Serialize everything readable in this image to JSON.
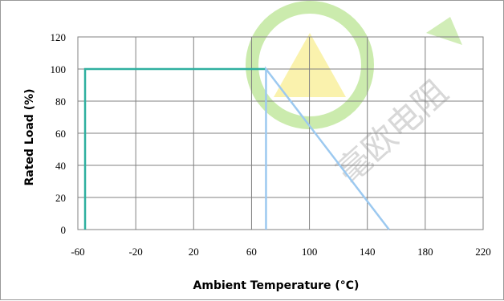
{
  "chart_data": {
    "type": "line",
    "xlabel": "Ambient Temperature (°C)",
    "ylabel": "Rated Load (%)",
    "xlim": [
      -60,
      220
    ],
    "ylim": [
      0,
      120
    ],
    "x_ticks": [
      -60,
      -20,
      20,
      60,
      100,
      140,
      180,
      220
    ],
    "y_ticks": [
      0,
      20,
      40,
      60,
      80,
      100,
      120
    ],
    "grid": true,
    "series": [
      {
        "color": "#2fb0a0",
        "x": [
          -55,
          -55,
          70
        ],
        "y": [
          0,
          100,
          100
        ]
      },
      {
        "color": "#9cc9f0",
        "x": [
          70,
          70,
          155
        ],
        "y": [
          0,
          100,
          0
        ]
      }
    ],
    "colors": {
      "grid": "#808080",
      "watermark_green": "#8cd24a",
      "watermark_yellow": "#f3e34a",
      "watermark_text": "#c8c8c8"
    },
    "watermark": {
      "text": "毫欧电阻"
    }
  }
}
